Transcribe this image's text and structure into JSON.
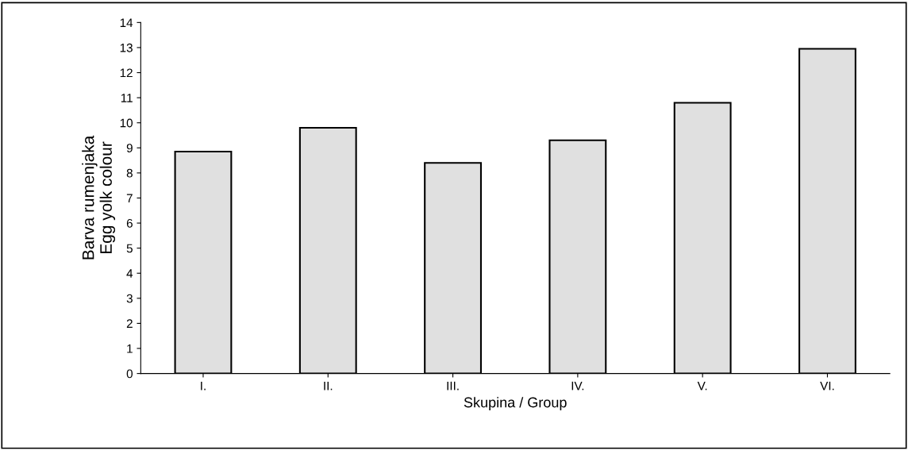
{
  "chart_data": {
    "type": "bar",
    "xlabel": "Skupina / Group",
    "ylabel": "Barva rumenjaka\nEgg yolk colour",
    "categories": [
      "I.",
      "II.",
      "III.",
      "IV.",
      "V.",
      "VI."
    ],
    "values": [
      8.85,
      9.8,
      8.4,
      9.3,
      10.8,
      12.95
    ],
    "color": "#e0e0e0",
    "ylim": [
      0,
      14
    ],
    "yticks": [
      0,
      1,
      2,
      3,
      4,
      5,
      6,
      7,
      8,
      9,
      10,
      11,
      12,
      13,
      14
    ],
    "grid": false,
    "legend": false
  }
}
